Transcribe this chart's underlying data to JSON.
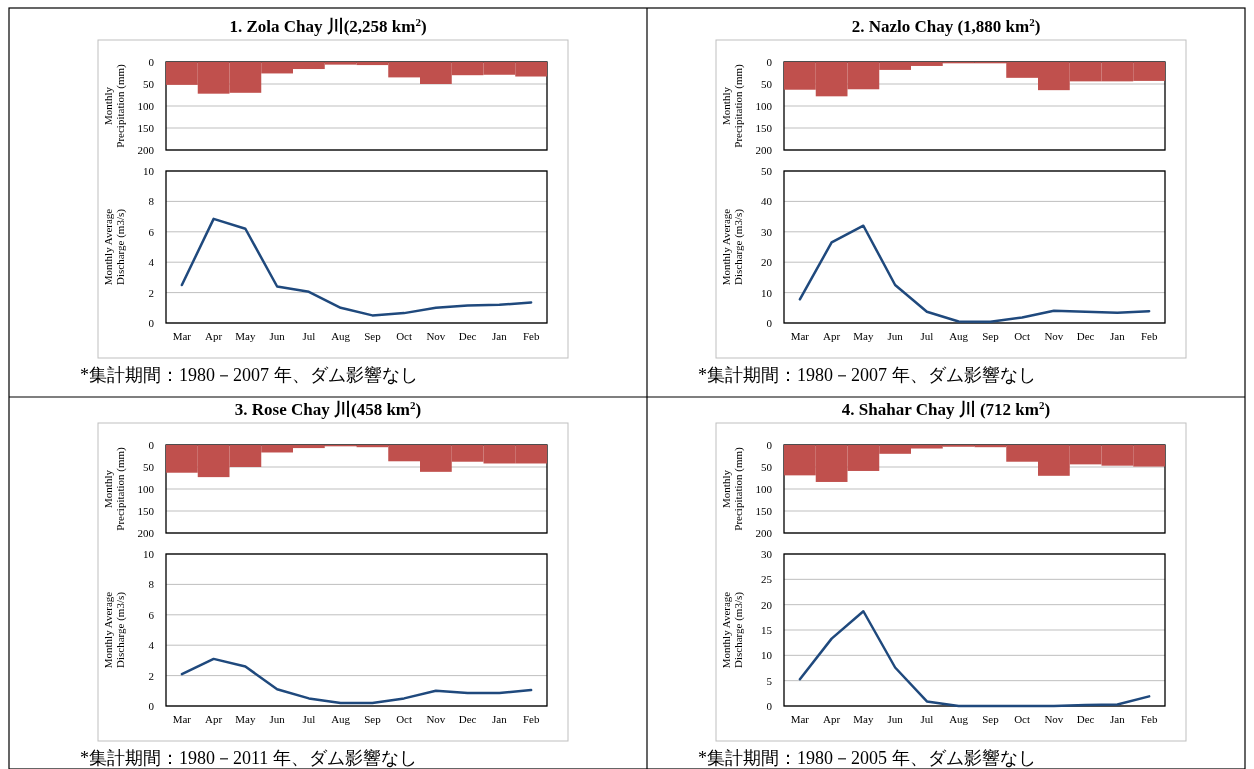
{
  "chart_data": [
    {
      "type": "bar",
      "title": "1. Zola Chay 川(2,258 km$^{2}$)",
      "ylabel": "Monthly Precipitation (mm)",
      "categories": [
        null,
        null,
        null,
        null,
        null,
        null,
        null,
        null,
        null,
        null,
        null,
        null
      ],
      "values": [
        52,
        72,
        70,
        26,
        16,
        6,
        7,
        35,
        50,
        30,
        29,
        33
      ],
      "color": "#c0504d",
      "ylim": [
        200,
        0
      ],
      "yticks": [
        0,
        50,
        100,
        150,
        200
      ],
      "grid": "y"
    },
    {
      "type": "line",
      "ylabel": "Monthly Average Discharge (m3/s)",
      "categories": [
        "Mar",
        "Apr",
        "May",
        "Jun",
        "Jul",
        "Aug",
        "Sep",
        "Oct",
        "Nov",
        "Dec",
        "Jan",
        "Feb"
      ],
      "values": [
        2.5,
        6.85,
        6.2,
        2.4,
        2.05,
        1.0,
        0.5,
        0.65,
        1.0,
        1.15,
        1.2,
        1.35
      ],
      "color": "#1f497d",
      "ylim": [
        0,
        10
      ],
      "yticks": [
        0,
        2,
        4,
        6,
        8,
        10
      ],
      "grid": "y",
      "annotations": [
        "*集計期間：1980－2007 年、ダム影響なし"
      ]
    },
    {
      "type": "bar",
      "title": "2. Nazlo Chay (1,880 km$^{2}$)",
      "ylabel": "Monthly Precipitation (mm)",
      "categories": [
        null,
        null,
        null,
        null,
        null,
        null,
        null,
        null,
        null,
        null,
        null,
        null
      ],
      "values": [
        63,
        78,
        62,
        18,
        9,
        3,
        3,
        36,
        64,
        44,
        44,
        43
      ],
      "color": "#c0504d",
      "ylim": [
        200,
        0
      ],
      "yticks": [
        0,
        50,
        100,
        150,
        200
      ],
      "grid": "y"
    },
    {
      "type": "line",
      "ylabel": "Monthly Average Discharge (m3/s)",
      "categories": [
        "Mar",
        "Apr",
        "May",
        "Jun",
        "Jul",
        "Aug",
        "Sep",
        "Oct",
        "Nov",
        "Dec",
        "Jan",
        "Feb"
      ],
      "values": [
        7.8,
        26.5,
        32,
        12.5,
        3.7,
        0.5,
        0.4,
        1.8,
        4,
        3.7,
        3.4,
        3.9
      ],
      "color": "#1f497d",
      "ylim": [
        0,
        50
      ],
      "yticks": [
        0,
        10,
        20,
        30,
        40,
        50
      ],
      "grid": "y",
      "annotations": [
        "*集計期間：1980－2007 年、ダム影響なし"
      ]
    },
    {
      "type": "bar",
      "title": "3. Rose Chay 川(458 km$^{2}$)",
      "ylabel": "Monthly Precipitation (mm)",
      "categories": [
        null,
        null,
        null,
        null,
        null,
        null,
        null,
        null,
        null,
        null,
        null,
        null
      ],
      "values": [
        63,
        73,
        50,
        17,
        7,
        3,
        5,
        37,
        61,
        38,
        42,
        42
      ],
      "color": "#c0504d",
      "ylim": [
        200,
        0
      ],
      "yticks": [
        0,
        50,
        100,
        150,
        200
      ],
      "grid": "y"
    },
    {
      "type": "line",
      "ylabel": "Monthly Average Discharge (m3/s)",
      "categories": [
        "Mar",
        "Apr",
        "May",
        "Jun",
        "Jul",
        "Aug",
        "Sep",
        "Oct",
        "Nov",
        "Dec",
        "Jan",
        "Feb"
      ],
      "values": [
        2.1,
        3.1,
        2.6,
        1.1,
        0.5,
        0.2,
        0.2,
        0.5,
        1.0,
        0.85,
        0.85,
        1.05
      ],
      "color": "#1f497d",
      "ylim": [
        0,
        10
      ],
      "yticks": [
        0,
        2,
        4,
        6,
        8,
        10
      ],
      "grid": "y",
      "annotations": [
        "*集計期間：1980－2011 年、ダム影響なし"
      ]
    },
    {
      "type": "bar",
      "title": "4. Shahar Chay 川 (712 km$^{2}$)",
      "ylabel": "Monthly Precipitation (mm)",
      "categories": [
        null,
        null,
        null,
        null,
        null,
        null,
        null,
        null,
        null,
        null,
        null,
        null
      ],
      "values": [
        69,
        84,
        59,
        20,
        8,
        4,
        5,
        38,
        70,
        44,
        47,
        49
      ],
      "color": "#c0504d",
      "ylim": [
        200,
        0
      ],
      "yticks": [
        0,
        50,
        100,
        150,
        200
      ],
      "grid": "y"
    },
    {
      "type": "line",
      "ylabel": "Monthly Average Discharge (m3/s)",
      "categories": [
        "Mar",
        "Apr",
        "May",
        "Jun",
        "Jul",
        "Aug",
        "Sep",
        "Oct",
        "Nov",
        "Dec",
        "Jan",
        "Feb"
      ],
      "values": [
        5.3,
        13.3,
        18.7,
        7.6,
        0.9,
        0,
        0,
        0,
        0,
        0.2,
        0.3,
        1.9
      ],
      "color": "#1f497d",
      "ylim": [
        0,
        30
      ],
      "yticks": [
        0,
        5,
        10,
        15,
        20,
        25,
        30
      ],
      "grid": "y",
      "annotations": [
        "*集計期間：1980－2005 年、ダム影響なし"
      ]
    }
  ]
}
